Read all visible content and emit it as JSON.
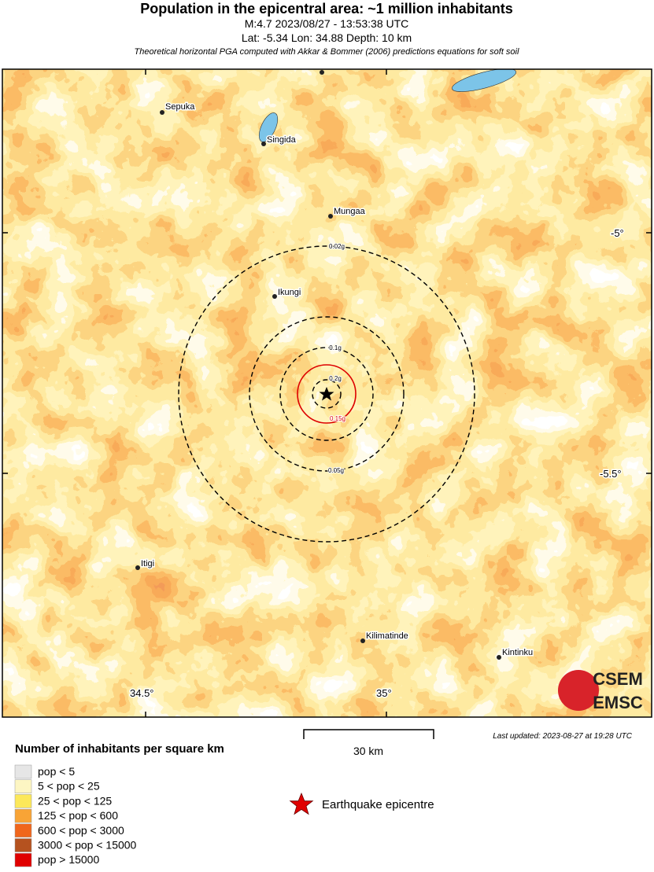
{
  "header": {
    "title": "Population in the epicentral area: ~1 million inhabitants",
    "lines": [
      "M:4.7 2023/08/27 - 13:53:38 UTC",
      "Lat: -5.34 Lon: 34.88 Depth: 10 km"
    ],
    "note": "Theoretical horizontal PGA computed with Akkar & Bommer (2006) predictions equations for soft soil"
  },
  "map": {
    "places": [
      "Sepuka",
      "Singida",
      "Mungaa",
      "Ikungi",
      "Itigi",
      "Kilimatinde",
      "Kintinku"
    ],
    "pga_contours": [
      "0.02g",
      "0.05g",
      "0.1g",
      "0.15g",
      "0.2g"
    ],
    "lat_labels": [
      "-5°",
      "-5.5°"
    ],
    "lon_labels": [
      "34.5°",
      "35°"
    ],
    "scale": "30 km",
    "last_updated": "Last updated: 2023-08-27 at 19:28 UTC",
    "logo": [
      "CSEM",
      "EMSC"
    ]
  },
  "legend": {
    "title": "Number of inhabitants per square km",
    "items": [
      {
        "label": "pop < 5",
        "color": "#e6e6e6"
      },
      {
        "label": "5 < pop < 25",
        "color": "#fdf6c3"
      },
      {
        "label": "25 < pop < 125",
        "color": "#fce85a"
      },
      {
        "label": "125 < pop < 600",
        "color": "#f8a436"
      },
      {
        "label": "600 < pop < 3000",
        "color": "#f0661c"
      },
      {
        "label": "3000 < pop < 15000",
        "color": "#b5521f"
      },
      {
        "label": "pop > 15000",
        "color": "#e00000"
      }
    ],
    "epicentre": "Earthquake epicentre"
  }
}
